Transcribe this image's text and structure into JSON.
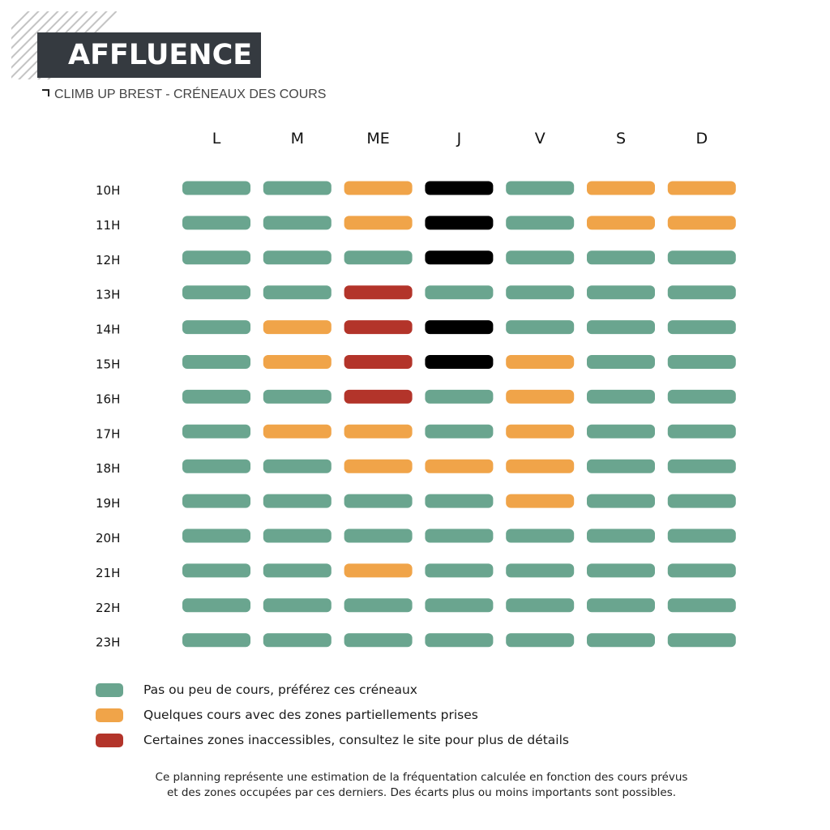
{
  "header": {
    "title": "AFFLUENCE",
    "subtitle": "CLIMB UP BREST - CRÉNEAUX DES COURS"
  },
  "chart_data": {
    "type": "heatmap",
    "days": [
      "L",
      "M",
      "ME",
      "J",
      "V",
      "S",
      "D"
    ],
    "hours": [
      "10H",
      "11H",
      "12H",
      "13H",
      "14H",
      "15H",
      "16H",
      "17H",
      "18H",
      "19H",
      "20H",
      "21H",
      "22H",
      "23H"
    ],
    "grid": [
      [
        "green",
        "green",
        "orange",
        "black",
        "green",
        "orange",
        "orange"
      ],
      [
        "green",
        "green",
        "orange",
        "black",
        "green",
        "orange",
        "orange"
      ],
      [
        "green",
        "green",
        "green",
        "black",
        "green",
        "green",
        "green"
      ],
      [
        "green",
        "green",
        "red",
        "green",
        "green",
        "green",
        "green"
      ],
      [
        "green",
        "orange",
        "red",
        "black",
        "green",
        "green",
        "green"
      ],
      [
        "green",
        "orange",
        "red",
        "black",
        "orange",
        "green",
        "green"
      ],
      [
        "green",
        "green",
        "red",
        "green",
        "orange",
        "green",
        "green"
      ],
      [
        "green",
        "orange",
        "orange",
        "green",
        "orange",
        "green",
        "green"
      ],
      [
        "green",
        "green",
        "orange",
        "orange",
        "orange",
        "green",
        "green"
      ],
      [
        "green",
        "green",
        "green",
        "green",
        "orange",
        "green",
        "green"
      ],
      [
        "green",
        "green",
        "green",
        "green",
        "green",
        "green",
        "green"
      ],
      [
        "green",
        "green",
        "orange",
        "green",
        "green",
        "green",
        "green"
      ],
      [
        "green",
        "green",
        "green",
        "green",
        "green",
        "green",
        "green"
      ],
      [
        "green",
        "green",
        "green",
        "green",
        "green",
        "green",
        "green"
      ]
    ],
    "colors": {
      "green": "#6aa58f",
      "orange": "#f0a449",
      "red": "#b3342a",
      "black": "#000000"
    },
    "legend": [
      {
        "key": "green",
        "label": "Pas ou peu de cours, préférez ces créneaux"
      },
      {
        "key": "orange",
        "label": "Quelques cours avec des zones partiellements prises"
      },
      {
        "key": "red",
        "label": "Certaines zones inaccessibles, consultez le site pour plus de détails"
      }
    ]
  },
  "footer": {
    "note_line1": "Ce planning représente une estimation de la fréquentation calculée en fonction des cours prévus",
    "note_line2": "et des zones occupées par ces derniers. Des écarts plus ou moins importants sont possibles."
  }
}
